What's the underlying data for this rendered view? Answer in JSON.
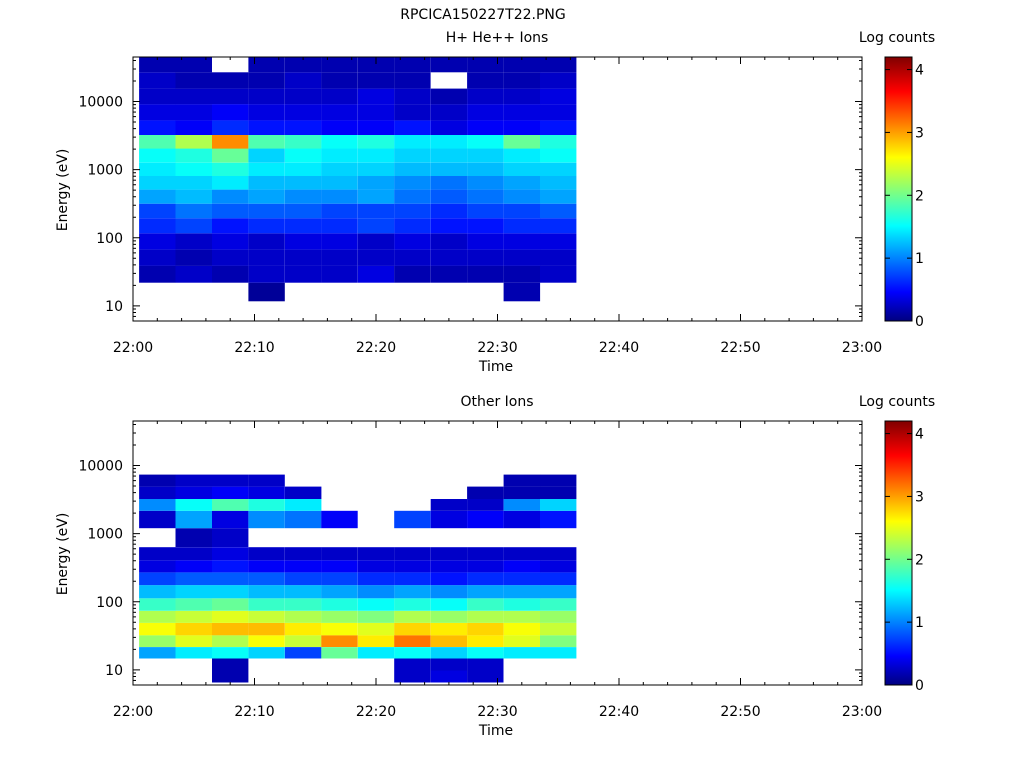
{
  "figure_title": "RPCICA150227T22.PNG",
  "chart_data": [
    {
      "type": "heatmap",
      "title": "H+ He++ Ions",
      "xlabel": "Time",
      "ylabel": "Energy (eV)",
      "y_scale": "log",
      "xlim": [
        "22:00",
        "23:00"
      ],
      "ylim": [
        6,
        45000
      ],
      "x_ticks": [
        "22:00",
        "22:10",
        "22:20",
        "22:30",
        "22:40",
        "22:50",
        "23:00"
      ],
      "y_ticks": [
        10,
        100,
        1000,
        10000
      ],
      "y_tick_labels": [
        "10",
        "100",
        "1000",
        "10000"
      ],
      "colorbar": {
        "label": "Log counts",
        "range": [
          0,
          4.2
        ],
        "ticks": [
          "0",
          "1",
          "2",
          "3",
          "4"
        ],
        "colormap": "jet"
      },
      "time_bins": [
        "22:02",
        "22:05",
        "22:08",
        "22:11",
        "22:14",
        "22:17",
        "22:20",
        "22:23",
        "22:26",
        "22:29",
        "22:32",
        "22:35"
      ],
      "energy_bins_eV": [
        16,
        30,
        50,
        90,
        150,
        250,
        400,
        650,
        1000,
        1600,
        2600,
        4000,
        7000,
        12000,
        20000,
        36000
      ],
      "log_counts": [
        [
          null,
          0.2,
          0.3,
          0.4,
          0.7,
          0.8,
          1.2,
          1.4,
          1.5,
          1.6,
          1.9,
          0.6,
          0.4,
          0.3,
          0.3,
          0.2
        ],
        [
          null,
          0.3,
          0.2,
          0.3,
          0.8,
          1.0,
          1.3,
          1.4,
          1.6,
          1.7,
          2.3,
          0.5,
          0.4,
          0.3,
          0.2,
          0.2
        ],
        [
          null,
          0.2,
          0.3,
          0.4,
          0.6,
          0.9,
          1.1,
          1.5,
          1.7,
          2.0,
          3.1,
          0.7,
          0.5,
          0.3,
          0.2,
          null
        ],
        [
          0.1,
          0.3,
          0.3,
          0.3,
          0.7,
          0.9,
          1.2,
          1.3,
          1.5,
          1.4,
          1.9,
          0.6,
          0.4,
          0.3,
          0.2,
          0.2
        ],
        [
          null,
          0.3,
          0.3,
          0.4,
          0.7,
          0.9,
          1.1,
          1.3,
          1.5,
          1.6,
          1.8,
          0.6,
          0.4,
          0.3,
          0.3,
          0.2
        ],
        [
          null,
          0.3,
          0.3,
          0.4,
          0.7,
          0.8,
          1.1,
          1.3,
          1.4,
          1.5,
          1.6,
          0.5,
          0.4,
          0.3,
          0.2,
          0.2
        ],
        [
          null,
          0.4,
          0.3,
          0.3,
          0.8,
          0.8,
          1.2,
          1.2,
          1.4,
          1.5,
          1.7,
          0.5,
          0.4,
          0.4,
          0.2,
          0.2
        ],
        [
          null,
          0.2,
          0.3,
          0.4,
          0.7,
          0.8,
          1.0,
          1.1,
          1.3,
          1.4,
          1.5,
          0.6,
          0.3,
          0.3,
          0.2,
          0.2
        ],
        [
          null,
          0.2,
          0.3,
          0.3,
          0.6,
          0.7,
          0.9,
          1.0,
          1.3,
          1.4,
          1.5,
          0.4,
          0.3,
          0.2,
          null,
          0.2
        ],
        [
          null,
          0.2,
          0.3,
          0.4,
          0.6,
          0.8,
          1.0,
          1.1,
          1.3,
          1.4,
          1.6,
          0.5,
          0.4,
          0.3,
          0.2,
          0.2
        ],
        [
          0.2,
          0.2,
          0.3,
          0.4,
          0.7,
          0.8,
          1.1,
          1.2,
          1.4,
          1.5,
          2.0,
          0.5,
          0.4,
          0.3,
          0.2,
          0.2
        ],
        [
          null,
          0.3,
          0.3,
          0.4,
          0.7,
          0.9,
          1.2,
          1.3,
          1.4,
          1.6,
          1.7,
          0.6,
          0.4,
          0.4,
          0.3,
          0.2
        ]
      ]
    },
    {
      "type": "heatmap",
      "title": "Other Ions",
      "xlabel": "Time",
      "ylabel": "Energy (eV)",
      "y_scale": "log",
      "xlim": [
        "22:00",
        "23:00"
      ],
      "ylim": [
        6,
        45000
      ],
      "x_ticks": [
        "22:00",
        "22:10",
        "22:20",
        "22:30",
        "22:40",
        "22:50",
        "23:00"
      ],
      "y_ticks": [
        10,
        100,
        1000,
        10000
      ],
      "y_tick_labels": [
        "10",
        "100",
        "1000",
        "10000"
      ],
      "colorbar": {
        "label": "Log counts",
        "range": [
          0,
          4.2
        ],
        "ticks": [
          "0",
          "1",
          "2",
          "3",
          "4"
        ],
        "colormap": "jet"
      },
      "time_bins": [
        "22:02",
        "22:05",
        "22:08",
        "22:11",
        "22:14",
        "22:17",
        "22:20",
        "22:23",
        "22:26",
        "22:29",
        "22:32",
        "22:35"
      ],
      "energy_bins_eV": [
        8,
        12,
        18,
        26,
        40,
        60,
        90,
        140,
        220,
        330,
        500,
        800,
        1800,
        2600,
        4000,
        6000
      ],
      "log_counts": [
        [
          null,
          null,
          1.2,
          2.2,
          2.6,
          2.3,
          1.8,
          1.3,
          0.8,
          0.4,
          0.3,
          null,
          0.3,
          1.1,
          0.3,
          0.2
        ],
        [
          null,
          null,
          1.5,
          2.5,
          2.8,
          2.4,
          1.9,
          1.4,
          0.9,
          0.5,
          0.3,
          0.2,
          1.2,
          1.6,
          0.4,
          0.3
        ],
        [
          0.2,
          0.2,
          1.6,
          2.3,
          2.9,
          2.5,
          2.0,
          1.4,
          0.9,
          0.6,
          0.4,
          0.3,
          0.4,
          1.9,
          0.5,
          0.3
        ],
        [
          null,
          null,
          1.4,
          2.6,
          2.9,
          2.4,
          1.8,
          1.3,
          0.9,
          0.5,
          0.3,
          null,
          1.1,
          1.7,
          0.4,
          0.3
        ],
        [
          null,
          null,
          0.8,
          2.4,
          2.7,
          2.3,
          1.8,
          1.3,
          0.8,
          0.5,
          0.3,
          null,
          1.0,
          1.5,
          0.3,
          null
        ],
        [
          null,
          null,
          2.0,
          3.1,
          2.6,
          2.2,
          1.7,
          1.2,
          0.8,
          0.5,
          0.3,
          null,
          0.5,
          null,
          null,
          null
        ],
        [
          null,
          null,
          1.5,
          2.7,
          2.5,
          2.1,
          1.6,
          1.1,
          0.7,
          0.4,
          0.3,
          null,
          null,
          null,
          null,
          null
        ],
        [
          0.3,
          0.3,
          1.6,
          3.2,
          2.8,
          2.3,
          1.7,
          1.2,
          0.7,
          0.4,
          0.3,
          null,
          0.8,
          null,
          null,
          null
        ],
        [
          0.4,
          0.3,
          1.4,
          2.9,
          2.7,
          2.2,
          1.6,
          1.1,
          0.6,
          0.4,
          0.3,
          null,
          0.4,
          0.3,
          null,
          null
        ],
        [
          0.3,
          0.3,
          1.6,
          2.7,
          2.8,
          2.3,
          1.8,
          1.2,
          0.7,
          0.4,
          0.3,
          null,
          0.5,
          0.3,
          0.2,
          null
        ],
        [
          null,
          null,
          1.5,
          2.5,
          2.6,
          2.3,
          1.7,
          1.2,
          0.7,
          0.5,
          0.3,
          null,
          0.4,
          1.1,
          0.2,
          0.2
        ],
        [
          null,
          null,
          1.5,
          2.1,
          2.4,
          2.2,
          1.8,
          1.2,
          0.7,
          0.4,
          0.3,
          null,
          0.6,
          1.4,
          0.2,
          0.2
        ]
      ]
    }
  ]
}
